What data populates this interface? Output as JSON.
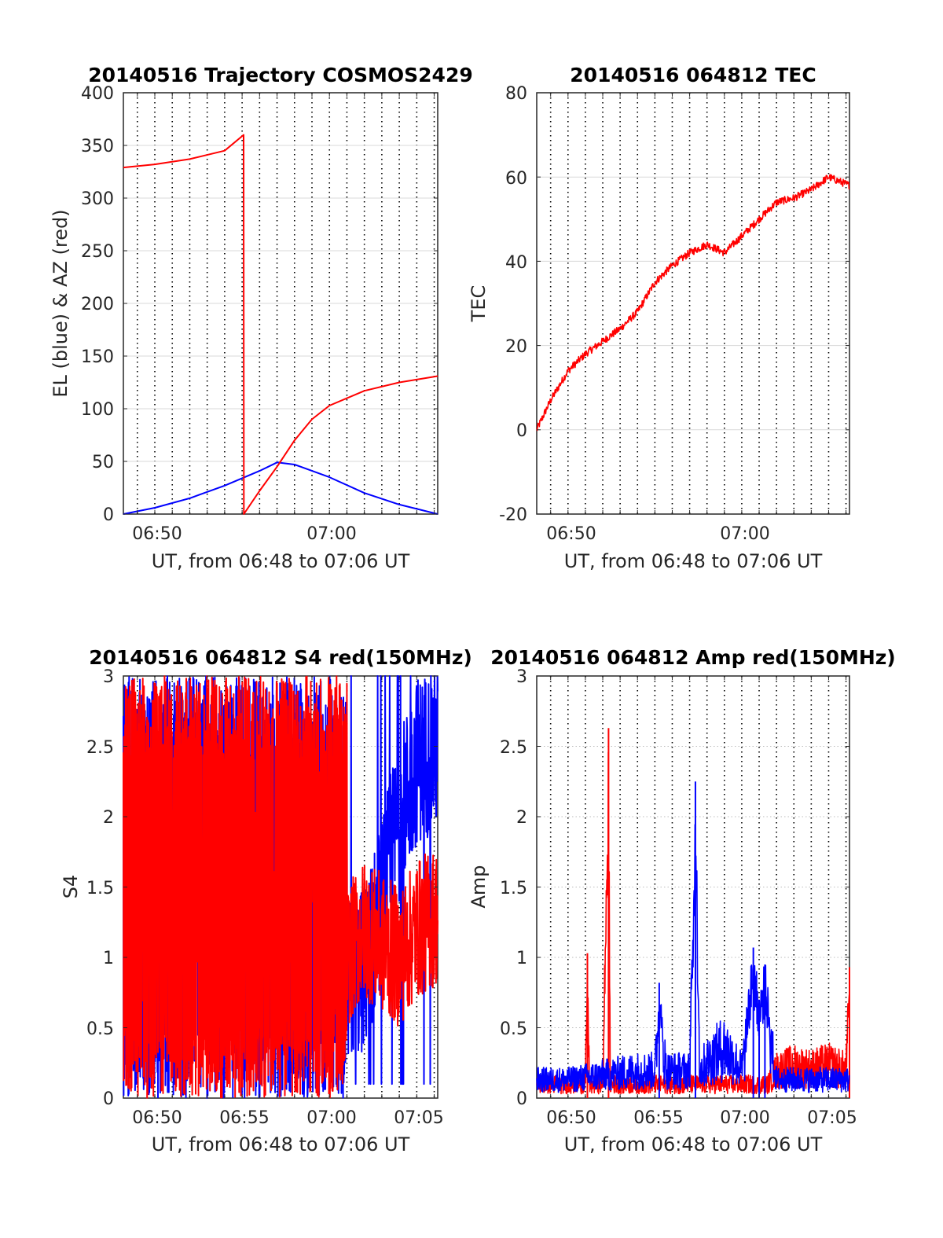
{
  "figure": {
    "panels": [
      {
        "title": "20140516 Trajectory COSMOS2429",
        "ylabel": "EL (blue) & AZ (red)",
        "xlabel": "UT, from 06:48 to 07:06 UT",
        "xticks": [
          "06:50",
          "07:00"
        ],
        "yticks": [
          "0",
          "50",
          "100",
          "150",
          "200",
          "250",
          "300",
          "350",
          "400"
        ]
      },
      {
        "title": "20140516 064812 TEC",
        "ylabel": "TEC",
        "xlabel": "UT, from 06:48 to 07:06 UT",
        "xticks": [
          "06:50",
          "07:00"
        ],
        "yticks": [
          "-20",
          "0",
          "20",
          "40",
          "60",
          "80"
        ]
      },
      {
        "title": "20140516 064812 S4 red(150MHz)",
        "ylabel": "S4",
        "xlabel": "UT, from 06:48 to 07:06 UT",
        "xticks": [
          "06:50",
          "06:55",
          "07:00",
          "07:05"
        ],
        "yticks": [
          "0",
          "0.5",
          "1",
          "1.5",
          "2",
          "2.5",
          "3"
        ]
      },
      {
        "title": "20140516 064812 Amp red(150MHz)",
        "ylabel": "Amp",
        "xlabel": "UT, from 06:48 to 07:06 UT",
        "xticks": [
          "06:50",
          "06:55",
          "07:00",
          "07:05"
        ],
        "yticks": [
          "0",
          "0.5",
          "1",
          "1.5",
          "2",
          "2.5",
          "3"
        ]
      }
    ]
  },
  "chart_data": [
    {
      "type": "line",
      "title": "20140516 Trajectory COSMOS2429",
      "xlabel": "UT, from 06:48 to 07:06 UT",
      "ylabel": "EL (blue) & AZ (red)",
      "xlim": [
        "06:48:12",
        "07:06:12"
      ],
      "ylim": [
        0,
        400
      ],
      "grid": true,
      "series": [
        {
          "color": "#0000ff",
          "x": [
            "06:48:12",
            "06:50",
            "06:52",
            "06:54",
            "06:56",
            "06:57",
            "06:58",
            "07:00",
            "07:02",
            "07:04",
            "07:06:12"
          ],
          "y": [
            0,
            6,
            15,
            27,
            41,
            49,
            47,
            35,
            20,
            9,
            0
          ]
        },
        {
          "color": "#ff0000",
          "x": [
            "06:48:12",
            "06:50",
            "06:52",
            "06:54",
            "06:55:05",
            "06:55:06",
            "06:56",
            "06:57",
            "06:58",
            "06:59",
            "07:00",
            "07:02",
            "07:04",
            "07:06:12"
          ],
          "y": [
            329,
            332,
            337,
            345,
            360,
            0,
            22,
            45,
            70,
            90,
            103,
            117,
            125,
            131
          ]
        }
      ]
    },
    {
      "type": "line",
      "title": "20140516 064812 TEC",
      "xlabel": "UT, from 06:48 to 07:06 UT",
      "ylabel": "TEC",
      "xlim": [
        "06:48:12",
        "07:06:12"
      ],
      "ylim": [
        -20,
        80
      ],
      "grid": true,
      "series": [
        {
          "color": "#ff0000",
          "x": [
            "06:48:12",
            "06:49",
            "06:50",
            "06:51",
            "06:52",
            "06:53",
            "06:54",
            "06:55",
            "06:56",
            "06:57",
            "06:58",
            "06:59",
            "06:59:30",
            "07:00",
            "07:01",
            "07:02",
            "07:03",
            "07:04",
            "07:05",
            "07:06:12"
          ],
          "y": [
            0,
            7,
            14,
            18,
            21,
            24,
            28,
            35,
            39,
            42,
            44,
            42,
            44,
            46,
            50,
            54,
            55,
            57,
            60,
            58
          ]
        }
      ]
    },
    {
      "type": "line",
      "title": "20140516 064812 S4 red(150MHz)",
      "xlabel": "UT, from 06:48 to 07:06 UT",
      "ylabel": "S4",
      "xlim": [
        "06:48:12",
        "07:06:12"
      ],
      "ylim": [
        0,
        3
      ],
      "grid": true,
      "note_values": "noisy series; values oscillate rapidly between 0 and 3 until about 07:01, then settle near 0.8 (blue) and 0.8–2 (red)",
      "series": [
        {
          "color": "#0000ff",
          "x": [
            "06:48:12",
            "06:50",
            "06:52",
            "06:54",
            "06:56",
            "06:58",
            "07:00",
            "07:01",
            "07:02",
            "07:03",
            "07:04",
            "07:05",
            "07:06:12"
          ],
          "y": [
            1.5,
            1.5,
            1.5,
            1.5,
            1.5,
            1.6,
            1.6,
            0.8,
            0.9,
            1.4,
            2.0,
            2.4,
            2.5
          ]
        },
        {
          "color": "#ff0000",
          "x": [
            "06:48:12",
            "06:50",
            "06:52",
            "06:54",
            "06:56",
            "06:58",
            "07:00",
            "07:01",
            "07:02",
            "07:03",
            "07:04",
            "07:05",
            "07:06:12"
          ],
          "y": [
            1.5,
            1.5,
            1.5,
            1.4,
            1.4,
            1.3,
            1.3,
            1.0,
            1.2,
            1.1,
            1.0,
            1.2,
            1.3
          ]
        }
      ]
    },
    {
      "type": "line",
      "title": "20140516 064812 Amp red(150MHz)",
      "xlabel": "UT, from 06:48 to 07:06 UT",
      "ylabel": "Amp",
      "xlim": [
        "06:48:12",
        "07:06:12"
      ],
      "ylim": [
        0,
        3
      ],
      "grid": true,
      "series": [
        {
          "color": "#ff0000",
          "x": [
            "06:48:12",
            "06:51",
            "06:51:07",
            "06:51:14",
            "06:52",
            "06:52:20",
            "06:52:26",
            "06:55",
            "07:00",
            "07:01:30",
            "07:02",
            "07:03",
            "07:04",
            "07:05",
            "07:06",
            "07:06:12"
          ],
          "y": [
            0.15,
            0.15,
            1.03,
            0.15,
            0.15,
            2.63,
            0.15,
            0.15,
            0.15,
            0.15,
            0.3,
            0.35,
            0.32,
            0.36,
            0.3,
            0.93
          ]
        },
        {
          "color": "#0000ff",
          "x": [
            "06:48:12",
            "06:50",
            "06:52",
            "06:54",
            "06:55",
            "06:55:15",
            "06:55:40",
            "06:57",
            "06:57:20",
            "06:57:35",
            "06:58",
            "06:59",
            "07:00",
            "07:00:40",
            "07:01",
            "07:01:20",
            "07:02",
            "07:04",
            "07:06:12"
          ],
          "y": [
            0.2,
            0.2,
            0.25,
            0.3,
            0.3,
            0.82,
            0.3,
            0.3,
            2.25,
            0.3,
            0.4,
            0.55,
            0.3,
            1.07,
            0.7,
            0.95,
            0.2,
            0.2,
            0.2
          ]
        }
      ]
    }
  ]
}
